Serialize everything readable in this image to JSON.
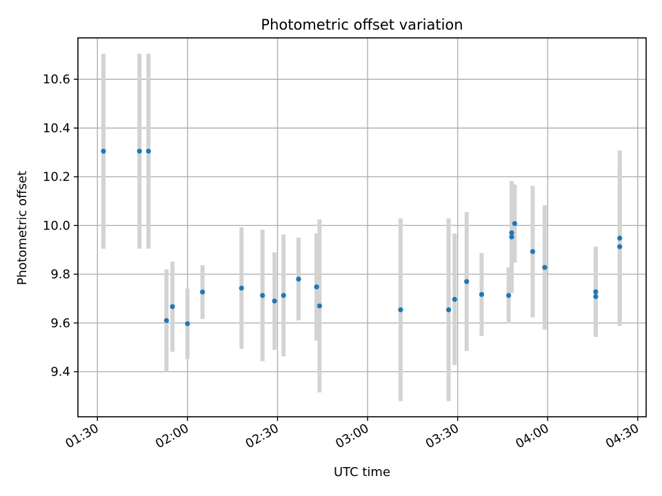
{
  "chart_data": {
    "type": "scatter",
    "title": "Photometric offset variation",
    "xlabel": "UTC time",
    "ylabel": "Photometric offset",
    "x_tick_labels": [
      "01:30",
      "02:00",
      "02:30",
      "03:00",
      "03:30",
      "04:00",
      "04:30"
    ],
    "x_ticks_minutes": [
      90,
      120,
      150,
      180,
      210,
      240,
      270
    ],
    "y_ticks": [
      9.4,
      9.6,
      9.8,
      10.0,
      10.2,
      10.4,
      10.6
    ],
    "y_tick_labels": [
      "9.4",
      "9.6",
      "9.8",
      "10.0",
      "10.2",
      "10.4",
      "10.6"
    ],
    "xlim_minutes": [
      83.5,
      272.8
    ],
    "ylim": [
      9.215,
      10.77
    ],
    "grid": true,
    "point_color": "#1f77b4",
    "error_bar_color": "#d3d3d3",
    "points": [
      {
        "time": "01:32",
        "y": 10.305,
        "err": 0.4
      },
      {
        "time": "01:44",
        "y": 10.305,
        "err": 0.4
      },
      {
        "time": "01:47",
        "y": 10.305,
        "err": 0.4
      },
      {
        "time": "01:53",
        "y": 9.61,
        "err": 0.21
      },
      {
        "time": "01:55",
        "y": 9.667,
        "err": 0.185
      },
      {
        "time": "02:00",
        "y": 9.597,
        "err": 0.145
      },
      {
        "time": "02:05",
        "y": 9.727,
        "err": 0.11
      },
      {
        "time": "02:18",
        "y": 9.743,
        "err": 0.25
      },
      {
        "time": "02:25",
        "y": 9.713,
        "err": 0.27
      },
      {
        "time": "02:29",
        "y": 9.69,
        "err": 0.2
      },
      {
        "time": "02:32",
        "y": 9.713,
        "err": 0.25
      },
      {
        "time": "02:37",
        "y": 9.78,
        "err": 0.17
      },
      {
        "time": "02:43",
        "y": 9.748,
        "err": 0.22
      },
      {
        "time": "02:44",
        "y": 9.67,
        "err": 0.355
      },
      {
        "time": "03:11",
        "y": 9.654,
        "err": 0.375
      },
      {
        "time": "03:27",
        "y": 9.654,
        "err": 0.375
      },
      {
        "time": "03:29",
        "y": 9.697,
        "err": 0.27
      },
      {
        "time": "03:33",
        "y": 9.77,
        "err": 0.285
      },
      {
        "time": "03:38",
        "y": 9.717,
        "err": 0.17
      },
      {
        "time": "03:47",
        "y": 9.713,
        "err": 0.115
      },
      {
        "time": "03:48",
        "y": 9.953,
        "err": 0.23
      },
      {
        "time": "03:48",
        "y": 9.97,
        "err": 0.21
      },
      {
        "time": "03:49",
        "y": 10.008,
        "err": 0.16
      },
      {
        "time": "03:55",
        "y": 9.893,
        "err": 0.27
      },
      {
        "time": "03:59",
        "y": 9.828,
        "err": 0.255
      },
      {
        "time": "04:16",
        "y": 9.728,
        "err": 0.185
      },
      {
        "time": "04:16",
        "y": 9.708,
        "err": 0.165
      },
      {
        "time": "04:24",
        "y": 9.913,
        "err": 0.32
      },
      {
        "time": "04:24",
        "y": 9.948,
        "err": 0.36
      }
    ]
  }
}
